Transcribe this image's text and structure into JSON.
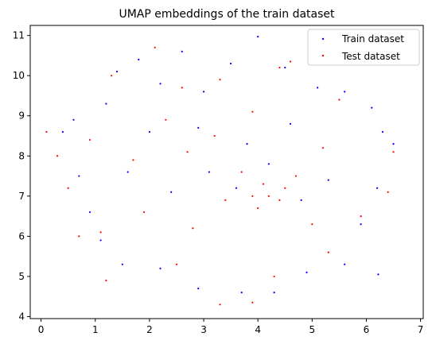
{
  "chart_data": {
    "type": "scatter",
    "title": "UMAP embeddings of the train dataset",
    "xlabel": "",
    "ylabel": "",
    "xlim": [
      -0.2,
      7.05
    ],
    "ylim": [
      3.95,
      11.25
    ],
    "xticks": [
      0,
      1,
      2,
      3,
      4,
      5,
      6,
      7
    ],
    "yticks": [
      4,
      5,
      6,
      7,
      8,
      9,
      10,
      11
    ],
    "grid": false,
    "legend_position": "top-right",
    "series": [
      {
        "name": "Train dataset",
        "color": "#0000ff",
        "marker": "dot",
        "sample_points": [
          [
            0.4,
            8.6
          ],
          [
            0.6,
            8.9
          ],
          [
            0.7,
            7.5
          ],
          [
            1.2,
            9.3
          ],
          [
            1.4,
            10.1
          ],
          [
            1.8,
            10.4
          ],
          [
            2.2,
            9.8
          ],
          [
            2.6,
            10.6
          ],
          [
            3.0,
            9.6
          ],
          [
            3.5,
            10.3
          ],
          [
            4.0,
            10.97
          ],
          [
            4.5,
            10.2
          ],
          [
            5.1,
            9.7
          ],
          [
            5.6,
            9.6
          ],
          [
            6.1,
            9.2
          ],
          [
            6.3,
            8.6
          ],
          [
            6.5,
            8.3
          ],
          [
            6.2,
            7.2
          ],
          [
            5.9,
            6.3
          ],
          [
            5.6,
            5.3
          ],
          [
            6.22,
            5.05
          ],
          [
            4.9,
            5.1
          ],
          [
            4.3,
            4.6
          ],
          [
            3.7,
            4.6
          ],
          [
            2.9,
            4.7
          ],
          [
            2.2,
            5.2
          ],
          [
            1.5,
            5.3
          ],
          [
            1.1,
            5.9
          ],
          [
            0.9,
            6.6
          ],
          [
            1.6,
            7.6
          ],
          [
            2.4,
            7.1
          ],
          [
            3.1,
            7.6
          ],
          [
            3.6,
            7.2
          ],
          [
            4.2,
            7.8
          ],
          [
            4.8,
            6.9
          ],
          [
            5.3,
            7.4
          ],
          [
            2.0,
            8.6
          ],
          [
            2.9,
            8.7
          ],
          [
            3.8,
            8.3
          ],
          [
            4.6,
            8.8
          ]
        ]
      },
      {
        "name": "Test dataset",
        "color": "#ff0000",
        "marker": "dot",
        "sample_points": [
          [
            0.1,
            8.6
          ],
          [
            0.3,
            8.0
          ],
          [
            0.5,
            7.2
          ],
          [
            0.9,
            8.4
          ],
          [
            1.3,
            10.0
          ],
          [
            2.1,
            10.7
          ],
          [
            2.6,
            9.7
          ],
          [
            3.3,
            9.9
          ],
          [
            4.4,
            10.2
          ],
          [
            4.6,
            10.35
          ],
          [
            5.5,
            9.4
          ],
          [
            6.5,
            8.1
          ],
          [
            6.4,
            7.1
          ],
          [
            5.9,
            6.5
          ],
          [
            5.3,
            5.6
          ],
          [
            4.3,
            5.0
          ],
          [
            3.9,
            4.35
          ],
          [
            3.3,
            4.3
          ],
          [
            2.5,
            5.3
          ],
          [
            1.2,
            4.9
          ],
          [
            1.1,
            6.1
          ],
          [
            0.7,
            6.0
          ],
          [
            1.9,
            6.6
          ],
          [
            3.4,
            6.9
          ],
          [
            3.9,
            7.0
          ],
          [
            4.2,
            7.0
          ],
          [
            4.4,
            6.9
          ],
          [
            4.0,
            6.7
          ],
          [
            4.1,
            7.3
          ],
          [
            3.7,
            7.6
          ],
          [
            4.5,
            7.2
          ],
          [
            2.7,
            8.1
          ],
          [
            3.2,
            8.5
          ],
          [
            4.7,
            7.5
          ],
          [
            5.2,
            8.2
          ],
          [
            1.7,
            7.9
          ],
          [
            2.3,
            8.9
          ],
          [
            3.9,
            9.1
          ],
          [
            5.0,
            6.3
          ],
          [
            2.8,
            6.2
          ]
        ]
      }
    ]
  }
}
